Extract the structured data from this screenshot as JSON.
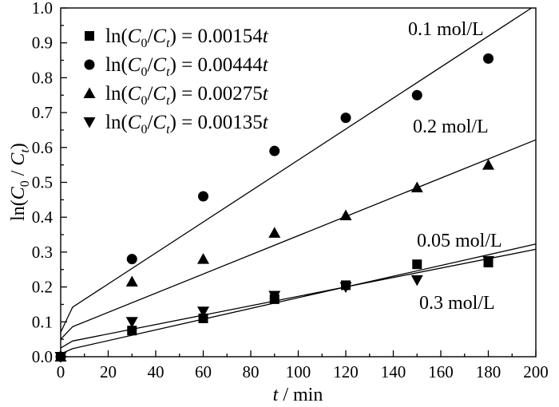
{
  "chart_data": {
    "type": "scatter",
    "xlabel": {
      "var": "t",
      "rest": " / min"
    },
    "ylabel": {
      "fn": "ln(",
      "num": "C",
      "num_sub": "0",
      "sep": " / ",
      "den": "C",
      "den_sub": "t",
      "close": ")"
    },
    "xlim": [
      0,
      200
    ],
    "ylim": [
      0.0,
      1.0
    ],
    "xticks": [
      0,
      20,
      40,
      60,
      80,
      100,
      120,
      140,
      160,
      180,
      200
    ],
    "yticks": [
      "0.0",
      "0.1",
      "0.2",
      "0.3",
      "0.4",
      "0.5",
      "0.6",
      "0.7",
      "0.8",
      "0.9",
      "1.0"
    ],
    "grid": false,
    "legend_position": "top-left",
    "x": [
      0,
      30,
      60,
      90,
      120,
      150,
      180
    ],
    "series": [
      {
        "name": "0.05 mol/L",
        "marker_icon": "filled-square",
        "values": [
          0.0,
          0.075,
          0.11,
          0.165,
          0.205,
          0.265,
          0.27
        ],
        "fit_line": {
          "x": [
            0,
            5,
            200
          ],
          "y": [
            0.008,
            0.023,
            0.323
          ]
        },
        "legend": {
          "fn": "ln(",
          "num": "C",
          "num_sub": "0",
          "sep": "/",
          "den": "C",
          "den_sub": "t",
          "eq": ") = ",
          "coef": "0.00154",
          "var": "t"
        }
      },
      {
        "name": "0.1 mol/L",
        "marker_icon": "filled-circle",
        "values": [
          0.0,
          0.28,
          0.46,
          0.59,
          0.685,
          0.75,
          0.855
        ],
        "fit_line": {
          "x": [
            0,
            5,
            200
          ],
          "y": [
            0.07,
            0.142,
            1.008
          ]
        },
        "legend": {
          "fn": "ln(",
          "num": "C",
          "num_sub": "0",
          "sep": "/",
          "den": "C",
          "den_sub": "t",
          "eq": ") = ",
          "coef": "0.00444",
          "var": "t"
        }
      },
      {
        "name": "0.2 mol/L",
        "marker_icon": "filled-triangle-up",
        "values": [
          0.0,
          0.215,
          0.28,
          0.355,
          0.405,
          0.485,
          0.55
        ],
        "fit_line": {
          "x": [
            0,
            5,
            200
          ],
          "y": [
            0.05,
            0.086,
            0.622
          ]
        },
        "legend": {
          "fn": "ln(",
          "num": "C",
          "num_sub": "0",
          "sep": "/",
          "den": "C",
          "den_sub": "t",
          "eq": ") = ",
          "coef": "0.00275",
          "var": "t"
        }
      },
      {
        "name": "0.3 mol/L",
        "marker_icon": "filled-triangle-down",
        "values": [
          0.0,
          0.1,
          0.13,
          0.175,
          0.2,
          0.22,
          0.275
        ],
        "fit_line": {
          "x": [
            0,
            5,
            200
          ],
          "y": [
            0.025,
            0.045,
            0.308
          ]
        },
        "legend": {
          "fn": "ln(",
          "num": "C",
          "num_sub": "0",
          "sep": "/",
          "den": "C",
          "den_sub": "t",
          "eq": ") = ",
          "coef": "0.00135",
          "var": "t"
        }
      }
    ],
    "colors": {
      "ink": "#000000",
      "background": "#ffffff"
    }
  }
}
